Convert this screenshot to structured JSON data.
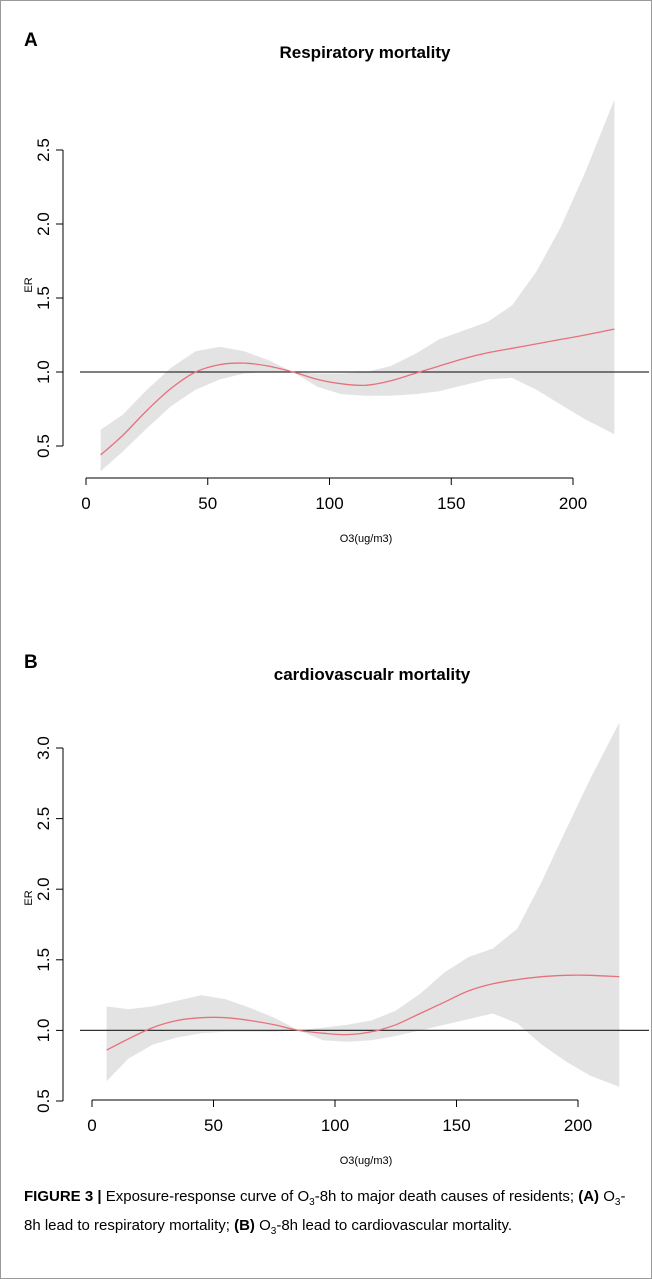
{
  "chart_data": [
    {
      "panel": "A",
      "type": "line",
      "title": "Respiratory mortality",
      "xlabel": "O3(ug/m3)",
      "ylabel": "ER",
      "xlim": [
        0,
        220
      ],
      "ylim": [
        0.3,
        2.9
      ],
      "xticks": [
        0,
        50,
        100,
        150,
        200
      ],
      "yticks": [
        0.5,
        1.0,
        1.5,
        2.0,
        2.5
      ],
      "ytick_labels": [
        "0.5",
        "1.0",
        "1.5",
        "2.0",
        "2.5"
      ],
      "reference_line": 1.0,
      "series": [
        {
          "x": [
            6,
            15,
            25,
            35,
            45,
            55,
            65,
            75,
            85,
            95,
            105,
            115,
            125,
            135,
            145,
            155,
            165,
            175,
            185,
            195,
            205,
            217
          ],
          "estimate": [
            0.44,
            0.57,
            0.74,
            0.89,
            1.0,
            1.05,
            1.06,
            1.04,
            1.0,
            0.95,
            0.92,
            0.91,
            0.94,
            0.99,
            1.04,
            1.09,
            1.13,
            1.16,
            1.19,
            1.22,
            1.25,
            1.29
          ],
          "lower": [
            0.33,
            0.46,
            0.62,
            0.77,
            0.88,
            0.95,
            0.99,
            1.0,
            1.0,
            0.9,
            0.85,
            0.84,
            0.84,
            0.85,
            0.87,
            0.91,
            0.95,
            0.96,
            0.88,
            0.78,
            0.68,
            0.58
          ],
          "upper": [
            0.61,
            0.71,
            0.88,
            1.03,
            1.14,
            1.17,
            1.14,
            1.08,
            1.0,
            0.99,
            0.99,
            1.0,
            1.04,
            1.12,
            1.22,
            1.28,
            1.34,
            1.45,
            1.68,
            1.98,
            2.35,
            2.84
          ]
        }
      ],
      "colors": {
        "estimate": "#e8707b",
        "band": "#e3e3e3",
        "reference": "#333333"
      }
    },
    {
      "panel": "B",
      "type": "line",
      "title": "cardiovascualr mortality",
      "xlabel": "O3(ug/m3)",
      "ylabel": "ER",
      "xlim": [
        0,
        220
      ],
      "ylim": [
        0.5,
        3.3
      ],
      "xticks": [
        0,
        50,
        100,
        150,
        200
      ],
      "yticks": [
        0.5,
        1.0,
        1.5,
        2.0,
        2.5,
        3.0
      ],
      "ytick_labels": [
        "0.5",
        "1.0",
        "1.5",
        "2.0",
        "2.5",
        "3.0"
      ],
      "reference_line": 1.0,
      "series": [
        {
          "x": [
            6,
            15,
            25,
            35,
            45,
            55,
            65,
            75,
            85,
            95,
            105,
            115,
            125,
            135,
            145,
            155,
            165,
            175,
            185,
            195,
            205,
            217
          ],
          "estimate": [
            0.86,
            0.94,
            1.02,
            1.07,
            1.09,
            1.09,
            1.07,
            1.04,
            1.0,
            0.98,
            0.97,
            0.99,
            1.04,
            1.12,
            1.2,
            1.28,
            1.33,
            1.36,
            1.38,
            1.39,
            1.39,
            1.38
          ],
          "lower": [
            0.64,
            0.8,
            0.9,
            0.95,
            0.98,
            0.99,
            0.99,
            0.99,
            1.0,
            0.93,
            0.92,
            0.93,
            0.96,
            1.0,
            1.04,
            1.08,
            1.12,
            1.05,
            0.9,
            0.78,
            0.68,
            0.6
          ],
          "upper": [
            1.17,
            1.15,
            1.17,
            1.21,
            1.25,
            1.22,
            1.16,
            1.09,
            1.0,
            1.02,
            1.04,
            1.07,
            1.14,
            1.26,
            1.41,
            1.52,
            1.58,
            1.72,
            2.05,
            2.42,
            2.78,
            3.18
          ]
        }
      ],
      "colors": {
        "estimate": "#e8707b",
        "band": "#e3e3e3",
        "reference": "#333333"
      }
    }
  ],
  "caption": {
    "label": "FIGURE 3 |",
    "line1_pre": "Exposure-response curve of O",
    "line1_sub": "3",
    "line1_post": "-8h to major death causes of",
    "line2_pre": "residents; ",
    "panel_a": "(A)",
    "a_pre": " O",
    "a_sub": "3",
    "a_post": "-8h lead to respiratory mortality; ",
    "panel_b": "(B)",
    "b_pre": " O",
    "b_sub": "3",
    "b_post": "-8h lead to",
    "line3": "cardiovascular mortality."
  }
}
